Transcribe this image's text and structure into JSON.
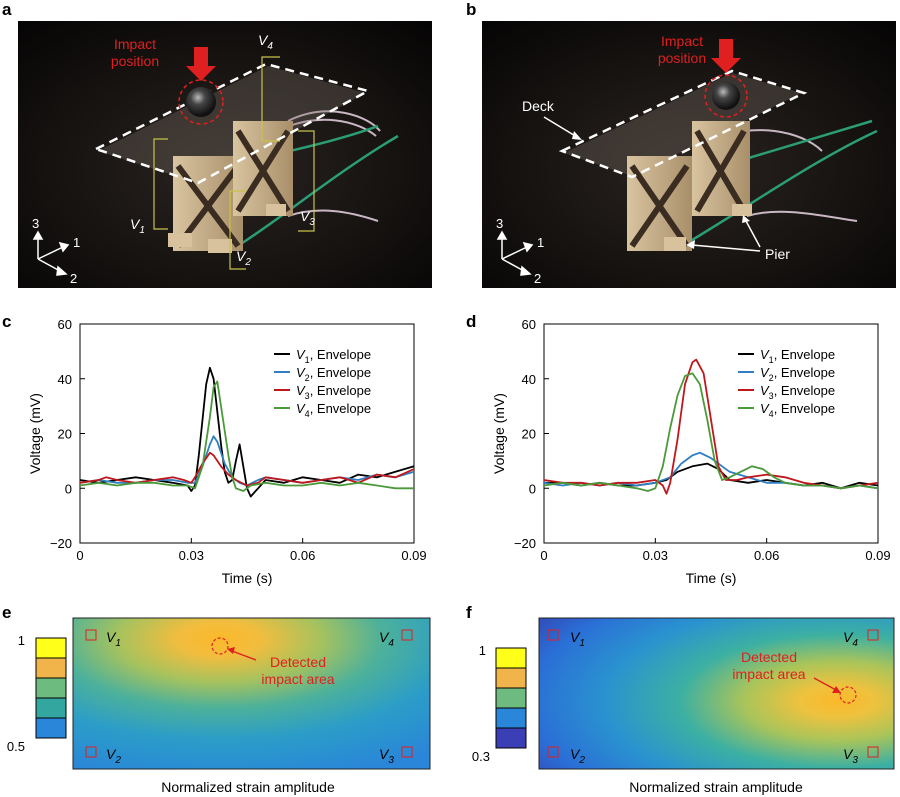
{
  "panels": {
    "a": {
      "letter": "a",
      "impact_label": [
        "Impact",
        "position"
      ],
      "labels": {
        "v1": "V",
        "v1sub": "1",
        "v2": "V",
        "v2sub": "2",
        "v3": "V",
        "v3sub": "3",
        "v4": "V",
        "v4sub": "4"
      },
      "axes": {
        "ax1": "1",
        "ax2": "2",
        "ax3": "3"
      }
    },
    "b": {
      "letter": "b",
      "impact_label": [
        "Impact",
        "position"
      ],
      "deck": "Deck",
      "pier": "Pier",
      "axes": {
        "ax1": "1",
        "ax2": "2",
        "ax3": "3"
      }
    },
    "c": {
      "letter": "c"
    },
    "d": {
      "letter": "d"
    },
    "e": {
      "letter": "e",
      "detected": [
        "Detected",
        "impact area"
      ],
      "caption": "Normalized strain amplitude",
      "scale_top": "1",
      "scale_bottom": "0.5",
      "sensors": {
        "v1": "1",
        "v2": "2",
        "v3": "3",
        "v4": "4"
      }
    },
    "f": {
      "letter": "f",
      "detected": [
        "Detected",
        "impact area"
      ],
      "caption": "Normalized strain amplitude",
      "scale_top": "1",
      "scale_bottom": "0.3",
      "sensors": {
        "v1": "1",
        "v2": "2",
        "v3": "3",
        "v4": "4"
      }
    }
  },
  "colors": {
    "v1": "#000000",
    "v2": "#2f7fc1",
    "v3": "#c0171c",
    "v4": "#4a9a3a",
    "impact": "#e02020"
  },
  "chart_data": [
    {
      "panel": "c",
      "type": "line",
      "xlabel": "Time (s)",
      "ylabel": "Voltage (mV)",
      "xlim": [
        0,
        0.09
      ],
      "ylim": [
        -20,
        60
      ],
      "xticks": [
        0,
        0.03,
        0.06,
        0.09
      ],
      "xtick_labels": [
        "0",
        "0.03",
        "0.06",
        "0.09"
      ],
      "yticks": [
        -20,
        0,
        20,
        40,
        60
      ],
      "ytick_labels": [
        "−20",
        "0",
        "20",
        "40",
        "60"
      ],
      "legend_position": "top-right",
      "series": [
        {
          "name": "V1, Envelope",
          "legend_main": "V",
          "legend_sub": "1",
          "legend_rest": ", Envelope",
          "color": "#000000",
          "points": [
            [
              0,
              3
            ],
            [
              0.005,
              2
            ],
            [
              0.01,
              3
            ],
            [
              0.015,
              4
            ],
            [
              0.02,
              3
            ],
            [
              0.025,
              2
            ],
            [
              0.029,
              1
            ],
            [
              0.03,
              -1
            ],
            [
              0.031,
              1
            ],
            [
              0.032,
              12
            ],
            [
              0.034,
              38
            ],
            [
              0.035,
              44
            ],
            [
              0.036,
              40
            ],
            [
              0.038,
              16
            ],
            [
              0.039,
              6
            ],
            [
              0.04,
              2
            ],
            [
              0.041,
              3
            ],
            [
              0.042,
              10
            ],
            [
              0.043,
              16
            ],
            [
              0.044,
              8
            ],
            [
              0.045,
              0
            ],
            [
              0.046,
              -3
            ],
            [
              0.048,
              0
            ],
            [
              0.05,
              3
            ],
            [
              0.055,
              2
            ],
            [
              0.06,
              4
            ],
            [
              0.065,
              3
            ],
            [
              0.07,
              2
            ],
            [
              0.075,
              5
            ],
            [
              0.08,
              4
            ],
            [
              0.085,
              6
            ],
            [
              0.09,
              8
            ]
          ]
        },
        {
          "name": "V2, Envelope",
          "legend_main": "V",
          "legend_sub": "2",
          "legend_rest": ", Envelope",
          "color": "#2f7fc1",
          "points": [
            [
              0,
              2
            ],
            [
              0.005,
              3
            ],
            [
              0.01,
              2
            ],
            [
              0.015,
              2
            ],
            [
              0.02,
              3
            ],
            [
              0.025,
              3
            ],
            [
              0.029,
              2
            ],
            [
              0.031,
              2
            ],
            [
              0.033,
              8
            ],
            [
              0.035,
              16
            ],
            [
              0.036,
              19
            ],
            [
              0.037,
              17
            ],
            [
              0.039,
              9
            ],
            [
              0.041,
              4
            ],
            [
              0.043,
              2
            ],
            [
              0.045,
              1
            ],
            [
              0.048,
              3
            ],
            [
              0.05,
              4
            ],
            [
              0.055,
              3
            ],
            [
              0.06,
              2
            ],
            [
              0.065,
              3
            ],
            [
              0.07,
              4
            ],
            [
              0.075,
              3
            ],
            [
              0.08,
              5
            ],
            [
              0.085,
              4
            ],
            [
              0.09,
              6
            ]
          ]
        },
        {
          "name": "V3, Envelope",
          "legend_main": "V",
          "legend_sub": "3",
          "legend_rest": ", Envelope",
          "color": "#c0171c",
          "points": [
            [
              0,
              2
            ],
            [
              0.005,
              3
            ],
            [
              0.007,
              4
            ],
            [
              0.01,
              3
            ],
            [
              0.015,
              2
            ],
            [
              0.02,
              3
            ],
            [
              0.025,
              4
            ],
            [
              0.028,
              3
            ],
            [
              0.03,
              2
            ],
            [
              0.031,
              4
            ],
            [
              0.033,
              9
            ],
            [
              0.035,
              13
            ],
            [
              0.036,
              12
            ],
            [
              0.038,
              8
            ],
            [
              0.04,
              5
            ],
            [
              0.042,
              3
            ],
            [
              0.045,
              1
            ],
            [
              0.048,
              2
            ],
            [
              0.05,
              4
            ],
            [
              0.055,
              3
            ],
            [
              0.06,
              2
            ],
            [
              0.065,
              3
            ],
            [
              0.07,
              4
            ],
            [
              0.075,
              2
            ],
            [
              0.08,
              5
            ],
            [
              0.085,
              4
            ],
            [
              0.09,
              7
            ]
          ]
        },
        {
          "name": "V4, Envelope",
          "legend_main": "V",
          "legend_sub": "4",
          "legend_rest": ", Envelope",
          "color": "#4a9a3a",
          "points": [
            [
              0,
              1
            ],
            [
              0.005,
              2
            ],
            [
              0.01,
              1
            ],
            [
              0.015,
              2
            ],
            [
              0.02,
              2
            ],
            [
              0.025,
              1
            ],
            [
              0.029,
              1
            ],
            [
              0.031,
              0
            ],
            [
              0.033,
              8
            ],
            [
              0.035,
              26
            ],
            [
              0.036,
              37
            ],
            [
              0.037,
              39
            ],
            [
              0.038,
              30
            ],
            [
              0.04,
              12
            ],
            [
              0.041,
              4
            ],
            [
              0.042,
              0
            ],
            [
              0.044,
              -1
            ],
            [
              0.046,
              1
            ],
            [
              0.05,
              2
            ],
            [
              0.055,
              1
            ],
            [
              0.06,
              1
            ],
            [
              0.065,
              2
            ],
            [
              0.07,
              1
            ],
            [
              0.075,
              2
            ],
            [
              0.08,
              1
            ],
            [
              0.085,
              0
            ],
            [
              0.09,
              0
            ]
          ]
        }
      ]
    },
    {
      "panel": "d",
      "type": "line",
      "xlabel": "Time (s)",
      "ylabel": "Voltage (mV)",
      "xlim": [
        0,
        0.09
      ],
      "ylim": [
        -20,
        60
      ],
      "xticks": [
        0,
        0.03,
        0.06,
        0.09
      ],
      "xtick_labels": [
        "0",
        "0.03",
        "0.06",
        "0.09"
      ],
      "yticks": [
        -20,
        0,
        20,
        40,
        60
      ],
      "ytick_labels": [
        "−20",
        "0",
        "20",
        "40",
        "60"
      ],
      "legend_position": "top-right",
      "series": [
        {
          "name": "V1, Envelope",
          "legend_main": "V",
          "legend_sub": "1",
          "legend_rest": ", Envelope",
          "color": "#000000",
          "points": [
            [
              0,
              2
            ],
            [
              0.005,
              2
            ],
            [
              0.01,
              1
            ],
            [
              0.015,
              2
            ],
            [
              0.02,
              1
            ],
            [
              0.025,
              1
            ],
            [
              0.03,
              2
            ],
            [
              0.033,
              3
            ],
            [
              0.036,
              6
            ],
            [
              0.04,
              8
            ],
            [
              0.044,
              9
            ],
            [
              0.047,
              7
            ],
            [
              0.05,
              3
            ],
            [
              0.055,
              2
            ],
            [
              0.06,
              3
            ],
            [
              0.065,
              2
            ],
            [
              0.07,
              1
            ],
            [
              0.075,
              2
            ],
            [
              0.08,
              0
            ],
            [
              0.085,
              2
            ],
            [
              0.09,
              1
            ]
          ]
        },
        {
          "name": "V2, Envelope",
          "legend_main": "V",
          "legend_sub": "2",
          "legend_rest": ", Envelope",
          "color": "#2f7fc1",
          "points": [
            [
              0,
              2
            ],
            [
              0.005,
              1
            ],
            [
              0.01,
              2
            ],
            [
              0.015,
              1
            ],
            [
              0.02,
              2
            ],
            [
              0.025,
              1
            ],
            [
              0.03,
              2
            ],
            [
              0.034,
              4
            ],
            [
              0.037,
              9
            ],
            [
              0.04,
              12
            ],
            [
              0.042,
              13
            ],
            [
              0.045,
              11
            ],
            [
              0.048,
              8
            ],
            [
              0.05,
              6
            ],
            [
              0.055,
              4
            ],
            [
              0.06,
              2
            ],
            [
              0.065,
              2
            ],
            [
              0.07,
              1
            ],
            [
              0.075,
              1
            ],
            [
              0.08,
              0
            ],
            [
              0.085,
              1
            ],
            [
              0.09,
              0
            ]
          ]
        },
        {
          "name": "V3, Envelope",
          "legend_main": "V",
          "legend_sub": "3",
          "legend_rest": ", Envelope",
          "color": "#c0171c",
          "points": [
            [
              0,
              3
            ],
            [
              0.005,
              2
            ],
            [
              0.01,
              2
            ],
            [
              0.015,
              1
            ],
            [
              0.02,
              2
            ],
            [
              0.025,
              2
            ],
            [
              0.03,
              3
            ],
            [
              0.032,
              1
            ],
            [
              0.033,
              -2
            ],
            [
              0.034,
              2
            ],
            [
              0.036,
              18
            ],
            [
              0.038,
              38
            ],
            [
              0.04,
              46
            ],
            [
              0.041,
              47
            ],
            [
              0.043,
              42
            ],
            [
              0.045,
              25
            ],
            [
              0.047,
              8
            ],
            [
              0.049,
              3
            ],
            [
              0.052,
              3
            ],
            [
              0.055,
              4
            ],
            [
              0.06,
              5
            ],
            [
              0.065,
              4
            ],
            [
              0.07,
              2
            ],
            [
              0.075,
              1
            ],
            [
              0.08,
              0
            ],
            [
              0.085,
              1
            ],
            [
              0.09,
              2
            ]
          ]
        },
        {
          "name": "V4, Envelope",
          "legend_main": "V",
          "legend_sub": "4",
          "legend_rest": ", Envelope",
          "color": "#4a9a3a",
          "points": [
            [
              0,
              1
            ],
            [
              0.005,
              2
            ],
            [
              0.01,
              1
            ],
            [
              0.015,
              2
            ],
            [
              0.02,
              1
            ],
            [
              0.025,
              0
            ],
            [
              0.028,
              -1
            ],
            [
              0.03,
              0
            ],
            [
              0.032,
              8
            ],
            [
              0.034,
              22
            ],
            [
              0.036,
              34
            ],
            [
              0.038,
              41
            ],
            [
              0.04,
              42
            ],
            [
              0.042,
              38
            ],
            [
              0.044,
              25
            ],
            [
              0.046,
              10
            ],
            [
              0.048,
              3
            ],
            [
              0.05,
              4
            ],
            [
              0.053,
              6
            ],
            [
              0.056,
              8
            ],
            [
              0.059,
              7
            ],
            [
              0.062,
              4
            ],
            [
              0.065,
              2
            ],
            [
              0.07,
              1
            ],
            [
              0.075,
              1
            ],
            [
              0.08,
              0
            ],
            [
              0.085,
              1
            ],
            [
              0.09,
              0
            ]
          ]
        }
      ]
    }
  ]
}
